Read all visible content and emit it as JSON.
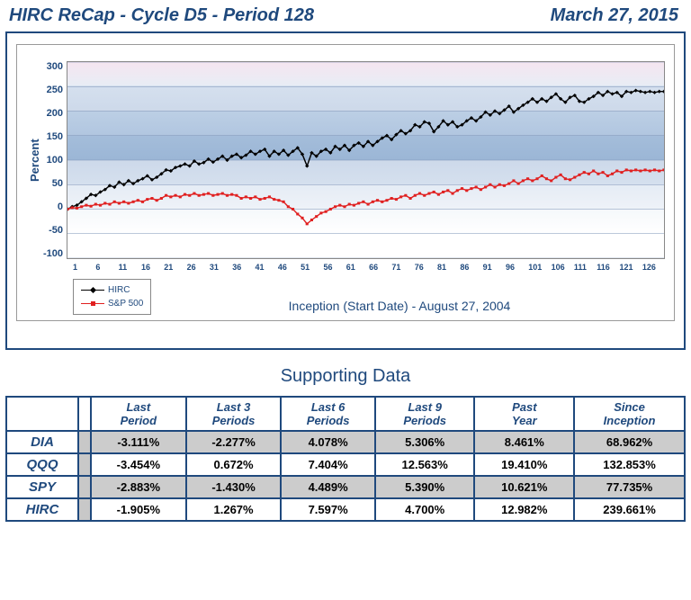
{
  "header": {
    "title": "HIRC ReCap - Cycle D5 - Period 128",
    "date": "March 27, 2015"
  },
  "chart": {
    "type": "line",
    "ylabel": "Percent",
    "ymin": -100,
    "ymax": 300,
    "ytick_step": 50,
    "yticks": [
      "300",
      "250",
      "200",
      "150",
      "100",
      "50",
      "0",
      "-50",
      "-100"
    ],
    "xticks": [
      "1",
      "6",
      "11",
      "16",
      "21",
      "26",
      "31",
      "36",
      "41",
      "46",
      "51",
      "56",
      "61",
      "66",
      "71",
      "76",
      "81",
      "86",
      "91",
      "96",
      "101",
      "106",
      "111",
      "116",
      "121",
      "126"
    ],
    "inception_text": "Inception (Start Date) - August 27, 2004",
    "grid_color": "#7a91b5",
    "series": [
      {
        "name": "HIRC",
        "color": "#000000",
        "marker": "diamond",
        "values": [
          0,
          5,
          8,
          15,
          22,
          30,
          28,
          35,
          40,
          48,
          45,
          55,
          50,
          58,
          52,
          58,
          62,
          68,
          60,
          65,
          72,
          80,
          78,
          85,
          88,
          92,
          88,
          98,
          92,
          95,
          102,
          96,
          102,
          108,
          100,
          108,
          112,
          105,
          110,
          118,
          112,
          118,
          122,
          108,
          118,
          112,
          120,
          110,
          118,
          125,
          112,
          88,
          115,
          108,
          118,
          122,
          115,
          128,
          122,
          130,
          120,
          130,
          135,
          128,
          138,
          130,
          138,
          145,
          150,
          142,
          152,
          160,
          154,
          160,
          172,
          168,
          178,
          175,
          158,
          168,
          180,
          172,
          178,
          168,
          172,
          180,
          186,
          180,
          188,
          198,
          192,
          200,
          195,
          202,
          210,
          198,
          205,
          212,
          218,
          225,
          218,
          225,
          220,
          228,
          235,
          225,
          218,
          228,
          232,
          220,
          218,
          225,
          230,
          238,
          232,
          240,
          235,
          238,
          230,
          240,
          238,
          242,
          240,
          238,
          240,
          238,
          240,
          240
        ]
      },
      {
        "name": "S&P 500",
        "color": "#e02020",
        "marker": "square",
        "values": [
          0,
          3,
          2,
          5,
          8,
          6,
          10,
          8,
          12,
          10,
          15,
          12,
          15,
          12,
          15,
          18,
          15,
          20,
          22,
          18,
          22,
          28,
          25,
          28,
          25,
          30,
          28,
          32,
          28,
          30,
          32,
          28,
          30,
          32,
          28,
          30,
          28,
          22,
          25,
          22,
          25,
          20,
          22,
          25,
          20,
          18,
          15,
          5,
          0,
          -10,
          -18,
          -30,
          -22,
          -15,
          -8,
          -5,
          0,
          5,
          8,
          5,
          10,
          8,
          12,
          15,
          10,
          15,
          18,
          15,
          18,
          22,
          20,
          25,
          28,
          22,
          28,
          32,
          28,
          32,
          35,
          30,
          35,
          38,
          32,
          38,
          42,
          38,
          42,
          45,
          40,
          45,
          50,
          45,
          50,
          48,
          52,
          58,
          52,
          58,
          62,
          58,
          62,
          68,
          62,
          58,
          65,
          70,
          62,
          60,
          65,
          70,
          75,
          72,
          78,
          72,
          75,
          68,
          72,
          78,
          75,
          80,
          78,
          80,
          78,
          80,
          78,
          80,
          78,
          80
        ]
      }
    ]
  },
  "table": {
    "title": "Supporting Data",
    "columns": [
      "Last Period",
      "Last 3 Periods",
      "Last 6 Periods",
      "Last 9 Periods",
      "Past Year",
      "Since Inception"
    ],
    "rows": [
      {
        "label": "DIA",
        "stripe": true,
        "values": [
          "-3.111%",
          "-2.277%",
          "4.078%",
          "5.306%",
          "8.461%",
          "68.962%"
        ]
      },
      {
        "label": "QQQ",
        "stripe": false,
        "values": [
          "-3.454%",
          "0.672%",
          "7.404%",
          "12.563%",
          "19.410%",
          "132.853%"
        ]
      },
      {
        "label": "SPY",
        "stripe": true,
        "values": [
          "-2.883%",
          "-1.430%",
          "4.489%",
          "5.390%",
          "10.621%",
          "77.735%"
        ]
      },
      {
        "label": "HIRC",
        "stripe": false,
        "values": [
          "-1.905%",
          "1.267%",
          "7.597%",
          "4.700%",
          "12.982%",
          "239.661%"
        ]
      }
    ]
  }
}
